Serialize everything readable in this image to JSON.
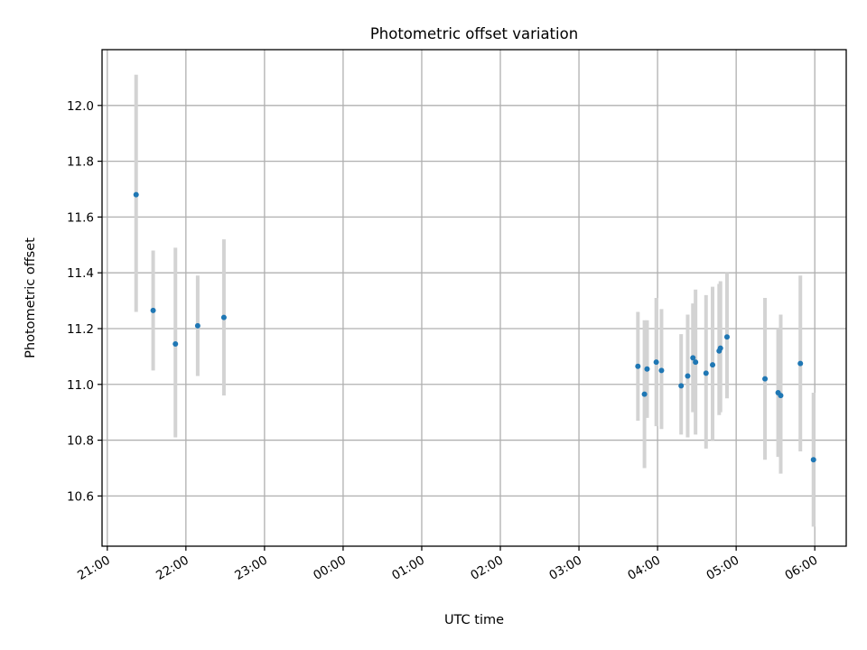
{
  "chart_data": {
    "type": "scatter",
    "title": "Photometric offset variation",
    "xlabel": "UTC time",
    "ylabel": "Photometric offset",
    "x_axis": {
      "type": "time",
      "range": [
        "20:56",
        "06:24"
      ],
      "day_rollover_after": "23:00",
      "ticks": [
        "21:00",
        "22:00",
        "23:00",
        "00:00",
        "01:00",
        "02:00",
        "03:00",
        "04:00",
        "05:00",
        "06:00"
      ],
      "tick_label_rotation": 30
    },
    "y_axis": {
      "range": [
        10.42,
        12.2
      ],
      "ticks": [
        "10.6",
        "10.8",
        "11.0",
        "11.2",
        "11.4",
        "11.6",
        "11.8",
        "12.0"
      ]
    },
    "grid": true,
    "colors": {
      "marker": "#1f77b4",
      "errorbar": "#d3d3d3",
      "grid": "#b0b0b0"
    },
    "points": [
      {
        "t": "21:22",
        "y": 11.68,
        "lo": 11.26,
        "hi": 12.11
      },
      {
        "t": "21:35",
        "y": 11.265,
        "lo": 11.05,
        "hi": 11.48
      },
      {
        "t": "21:52",
        "y": 11.145,
        "lo": 10.81,
        "hi": 11.49
      },
      {
        "t": "22:09",
        "y": 11.21,
        "lo": 11.03,
        "hi": 11.39
      },
      {
        "t": "22:29",
        "y": 11.24,
        "lo": 10.96,
        "hi": 11.52
      },
      {
        "t": "03:45",
        "y": 11.065,
        "lo": 10.87,
        "hi": 11.26
      },
      {
        "t": "03:50",
        "y": 10.965,
        "lo": 10.7,
        "hi": 11.23
      },
      {
        "t": "03:52",
        "y": 11.055,
        "lo": 10.88,
        "hi": 11.23
      },
      {
        "t": "03:59",
        "y": 11.08,
        "lo": 10.85,
        "hi": 11.31
      },
      {
        "t": "04:03",
        "y": 11.05,
        "lo": 10.84,
        "hi": 11.27
      },
      {
        "t": "04:18",
        "y": 10.995,
        "lo": 10.82,
        "hi": 11.18
      },
      {
        "t": "04:23",
        "y": 11.03,
        "lo": 10.81,
        "hi": 11.25
      },
      {
        "t": "04:27",
        "y": 11.095,
        "lo": 10.9,
        "hi": 11.29
      },
      {
        "t": "04:29",
        "y": 11.08,
        "lo": 10.82,
        "hi": 11.34
      },
      {
        "t": "04:37",
        "y": 11.04,
        "lo": 10.77,
        "hi": 11.32
      },
      {
        "t": "04:42",
        "y": 11.07,
        "lo": 10.8,
        "hi": 11.35
      },
      {
        "t": "04:47",
        "y": 11.12,
        "lo": 10.89,
        "hi": 11.36
      },
      {
        "t": "04:48",
        "y": 11.13,
        "lo": 10.9,
        "hi": 11.37
      },
      {
        "t": "04:53",
        "y": 11.17,
        "lo": 10.95,
        "hi": 11.4
      },
      {
        "t": "05:22",
        "y": 11.02,
        "lo": 10.73,
        "hi": 11.31
      },
      {
        "t": "05:32",
        "y": 10.97,
        "lo": 10.74,
        "hi": 11.2
      },
      {
        "t": "05:34",
        "y": 10.96,
        "lo": 10.68,
        "hi": 11.25
      },
      {
        "t": "05:49",
        "y": 11.075,
        "lo": 10.76,
        "hi": 11.39
      },
      {
        "t": "05:59",
        "y": 10.73,
        "lo": 10.49,
        "hi": 10.97
      }
    ]
  }
}
